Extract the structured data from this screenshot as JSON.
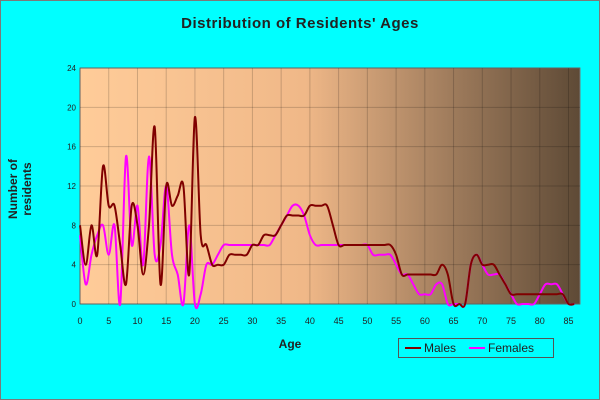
{
  "chart_data": {
    "type": "line",
    "title": "Distribution of Residents' Ages",
    "xlabel": "Age",
    "ylabel": "Number of residents",
    "xlim": [
      0,
      87
    ],
    "ylim": [
      0,
      24
    ],
    "x_ticks": [
      "0",
      "5",
      "10",
      "15",
      "20",
      "25",
      "30",
      "35",
      "40",
      "45",
      "50",
      "55",
      "60",
      "65",
      "70",
      "75",
      "80",
      "85"
    ],
    "y_ticks": [
      "0",
      "4",
      "8",
      "12",
      "16",
      "20",
      "24"
    ],
    "legend_position": "bottom-right",
    "series": [
      {
        "name": "Males",
        "color": "#800000",
        "x": [
          0,
          1,
          2,
          3,
          4,
          5,
          6,
          7,
          8,
          9,
          10,
          11,
          12,
          13,
          14,
          15,
          16,
          17,
          18,
          19,
          20,
          21,
          22,
          23,
          24,
          25,
          26,
          27,
          28,
          29,
          30,
          31,
          32,
          33,
          34,
          35,
          36,
          37,
          38,
          39,
          40,
          41,
          42,
          43,
          44,
          45,
          46,
          47,
          48,
          49,
          50,
          51,
          52,
          53,
          54,
          55,
          56,
          57,
          58,
          59,
          60,
          61,
          62,
          63,
          64,
          65,
          66,
          67,
          68,
          69,
          70,
          71,
          72,
          73,
          74,
          75,
          76,
          77,
          78,
          79,
          80,
          81,
          82,
          83,
          84,
          85,
          86
        ],
        "values": [
          8,
          4,
          8,
          5,
          14,
          10,
          10,
          6,
          2,
          10,
          8,
          3,
          8,
          18,
          2,
          12,
          10,
          11,
          12,
          3,
          19,
          7,
          6,
          4,
          4,
          4,
          5,
          5,
          5,
          5,
          6,
          6,
          7,
          7,
          7,
          8,
          9,
          9,
          9,
          9,
          10,
          10,
          10,
          10,
          8,
          6,
          6,
          6,
          6,
          6,
          6,
          6,
          6,
          6,
          6,
          5,
          3,
          3,
          3,
          3,
          3,
          3,
          3,
          4,
          3,
          0,
          0,
          0,
          4,
          5,
          4,
          4,
          4,
          3,
          2,
          1,
          1,
          1,
          1,
          1,
          1,
          1,
          1,
          1,
          1,
          0,
          0
        ]
      },
      {
        "name": "Females",
        "color": "#ff00ff",
        "x": [
          0,
          1,
          2,
          3,
          4,
          5,
          6,
          7,
          8,
          9,
          10,
          11,
          12,
          13,
          14,
          15,
          16,
          17,
          18,
          19,
          20,
          21,
          22,
          23,
          24,
          25,
          26,
          27,
          28,
          29,
          30,
          31,
          32,
          33,
          34,
          35,
          36,
          37,
          38,
          39,
          40,
          41,
          42,
          43,
          44,
          45,
          46,
          47,
          48,
          49,
          50,
          51,
          52,
          53,
          54,
          55,
          56,
          57,
          58,
          59,
          60,
          61,
          62,
          63,
          64,
          65,
          66,
          67,
          68,
          69,
          70,
          71,
          72,
          73,
          74,
          75,
          76,
          77,
          78,
          79,
          80,
          81,
          82,
          83,
          84,
          85,
          86
        ],
        "values": [
          7,
          2,
          5,
          7,
          8,
          5,
          8,
          0,
          15,
          6,
          10,
          4,
          15,
          5,
          6,
          12,
          5,
          3,
          0,
          8,
          0,
          1,
          4,
          4,
          5,
          6,
          6,
          6,
          6,
          6,
          6,
          6,
          6,
          6,
          7,
          8,
          9,
          10,
          10,
          9,
          7,
          6,
          6,
          6,
          6,
          6,
          6,
          6,
          6,
          6,
          6,
          5,
          5,
          5,
          5,
          4,
          3,
          3,
          2,
          1,
          1,
          1,
          2,
          2,
          0,
          0,
          0,
          0,
          4,
          5,
          4,
          3,
          3,
          3,
          2,
          1,
          0,
          0,
          0,
          0,
          1,
          2,
          2,
          2,
          1,
          0,
          0
        ]
      }
    ]
  }
}
